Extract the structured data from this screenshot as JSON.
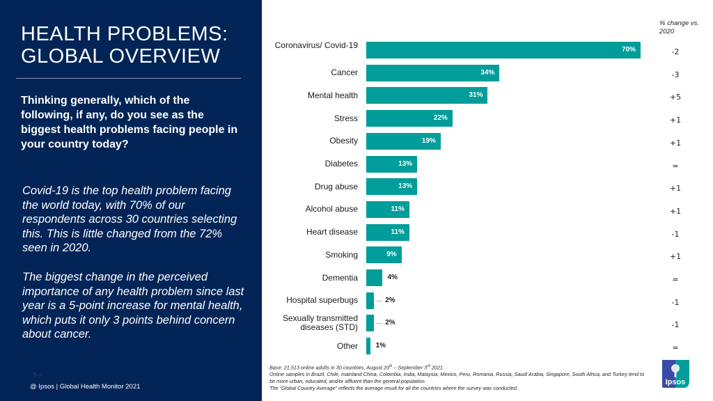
{
  "left_panel": {
    "title": "HEALTH PROBLEMS: GLOBAL OVERVIEW",
    "question": "Thinking generally, which of the following, if any, do you see as the biggest health problems facing people in your country today?",
    "insight_1": "Covid-19 is the top health problem facing the world today, with 70% of our respondents across 30 countries selecting this. This is little changed from the 72% seen in 2020.",
    "insight_2": "The biggest change in the perceived importance of any health problem since last year is a 5-point increase for mental health, which puts it only 3 points behind concern about cancer.",
    "page_number": "5 –",
    "footer": "@ Ipsos | Global Health Monitor 2021",
    "background_color": "#022456"
  },
  "chart_data": {
    "type": "bar",
    "orientation": "horizontal",
    "title": "",
    "xlabel": "",
    "ylabel": "",
    "xlim": [
      0,
      70
    ],
    "grid": false,
    "bar_color": "#009d9a",
    "value_suffix": "%",
    "categories": [
      "Coronavirus/ Covid-19",
      "Cancer",
      "Mental health",
      "Stress",
      "Obesity",
      "Diabetes",
      "Drug abuse",
      "Alcohol abuse",
      "Heart disease",
      "Smoking",
      "Dementia",
      "Hospital superbugs",
      "Sexually transmitted diseases (STD)",
      "Other"
    ],
    "values": [
      70,
      34,
      31,
      22,
      19,
      13,
      13,
      11,
      11,
      9,
      4,
      2,
      2,
      1
    ],
    "change_header": "% change vs. 2020",
    "change_vs_2020": [
      "-2",
      "-3",
      "+5",
      "+1",
      "+1",
      "=",
      "+1",
      "+1",
      "-1",
      "+1",
      "=",
      "-1",
      "-1",
      "="
    ]
  },
  "notes": {
    "line1_prefix": "Base: 21,513 online adults in 30 countries, August 20",
    "line1_sup1": "th",
    "line1_mid": " – September 3",
    "line1_sup2": "rd",
    "line1_suffix": " 2021.",
    "line2": "Online samples in Brazil, Chile, mainland China, Colombia, India, Malaysia, Mexico, Peru, Romania, Russia, Saudi Arabia, Singapore, South Africa, and Turkey tend to be more urban, educated, and/or affluent than the general population.",
    "line3": "The “Global Country Average” reflects the average result for all the countries where the survey was conducted."
  },
  "logo": {
    "text": "Ipsos",
    "color_left": "#3a4aa6",
    "color_right": "#009d9a"
  }
}
